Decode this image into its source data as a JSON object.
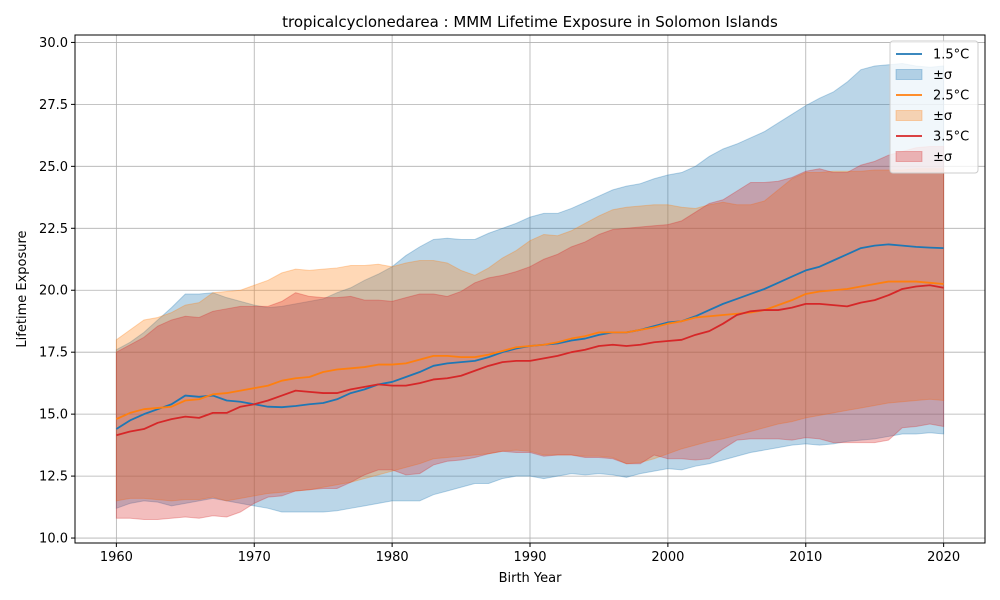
{
  "chart_data": {
    "type": "line",
    "title": "tropicalcyclonedarea : MMM Lifetime Exposure in Solomon Islands",
    "xlabel": "Birth Year",
    "ylabel": "Lifetime Exposure",
    "xlim": [
      1957,
      2023
    ],
    "ylim": [
      9.8,
      30.3
    ],
    "xticks": [
      1960,
      1970,
      1980,
      1990,
      2000,
      2010,
      2020
    ],
    "yticks": [
      10.0,
      12.5,
      15.0,
      17.5,
      20.0,
      22.5,
      25.0,
      27.5,
      30.0
    ],
    "ytick_labels": [
      "10.0",
      "12.5",
      "15.0",
      "17.5",
      "20.0",
      "22.5",
      "25.0",
      "27.5",
      "30.0"
    ],
    "grid": true,
    "legend_position": "upper right",
    "legend": [
      {
        "label": "1.5°C",
        "kind": "line",
        "color": "#1f77b4"
      },
      {
        "label": "±σ",
        "kind": "band",
        "color": "#1f77b4"
      },
      {
        "label": "2.5°C",
        "kind": "line",
        "color": "#ff7f0e"
      },
      {
        "label": "±σ",
        "kind": "band",
        "color": "#ff7f0e"
      },
      {
        "label": "3.5°C",
        "kind": "line",
        "color": "#d62728"
      },
      {
        "label": "±σ",
        "kind": "band",
        "color": "#d62728"
      }
    ],
    "x": [
      1960,
      1961,
      1962,
      1963,
      1964,
      1965,
      1966,
      1967,
      1968,
      1969,
      1970,
      1971,
      1972,
      1973,
      1974,
      1975,
      1976,
      1977,
      1978,
      1979,
      1980,
      1981,
      1982,
      1983,
      1984,
      1985,
      1986,
      1987,
      1988,
      1989,
      1990,
      1991,
      1992,
      1993,
      1994,
      1995,
      1996,
      1997,
      1998,
      1999,
      2000,
      2001,
      2002,
      2003,
      2004,
      2005,
      2006,
      2007,
      2008,
      2009,
      2010,
      2011,
      2012,
      2013,
      2014,
      2015,
      2016,
      2017,
      2018,
      2019,
      2020
    ],
    "series": [
      {
        "name": "1.5°C",
        "color": "#1f77b4",
        "mean": [
          14.4,
          14.75,
          15.0,
          15.2,
          15.4,
          15.75,
          15.7,
          15.75,
          15.55,
          15.5,
          15.4,
          15.3,
          15.28,
          15.33,
          15.4,
          15.45,
          15.6,
          15.85,
          16.0,
          16.2,
          16.3,
          16.5,
          16.7,
          16.95,
          17.05,
          17.1,
          17.15,
          17.3,
          17.5,
          17.65,
          17.75,
          17.8,
          17.85,
          17.97,
          18.05,
          18.2,
          18.3,
          18.3,
          18.4,
          18.55,
          18.7,
          18.75,
          18.95,
          19.2,
          19.45,
          19.65,
          19.85,
          20.05,
          20.3,
          20.55,
          20.8,
          20.95,
          21.2,
          21.45,
          21.7,
          21.8,
          21.85,
          21.8,
          21.75,
          21.72,
          21.7
        ],
        "lower": [
          11.2,
          11.4,
          11.5,
          11.45,
          11.3,
          11.4,
          11.5,
          11.6,
          11.5,
          11.4,
          11.3,
          11.2,
          11.05,
          11.05,
          11.05,
          11.05,
          11.1,
          11.2,
          11.3,
          11.4,
          11.5,
          11.5,
          11.5,
          11.75,
          11.9,
          12.05,
          12.2,
          12.2,
          12.4,
          12.5,
          12.5,
          12.4,
          12.5,
          12.6,
          12.55,
          12.6,
          12.55,
          12.45,
          12.6,
          12.7,
          12.8,
          12.75,
          12.9,
          13.0,
          13.15,
          13.3,
          13.45,
          13.55,
          13.65,
          13.75,
          13.8,
          13.75,
          13.8,
          13.9,
          13.95,
          14.0,
          14.1,
          14.2,
          14.2,
          14.25,
          14.2
        ],
        "upper": [
          17.6,
          17.9,
          18.3,
          18.8,
          19.3,
          19.85,
          19.85,
          19.9,
          19.7,
          19.55,
          19.4,
          19.3,
          19.35,
          19.45,
          19.55,
          19.65,
          19.9,
          20.1,
          20.4,
          20.65,
          20.95,
          21.4,
          21.75,
          22.05,
          22.1,
          22.05,
          22.05,
          22.3,
          22.5,
          22.7,
          22.95,
          23.1,
          23.1,
          23.3,
          23.55,
          23.8,
          24.05,
          24.2,
          24.3,
          24.5,
          24.65,
          24.75,
          25.0,
          25.4,
          25.7,
          25.9,
          26.15,
          26.4,
          26.75,
          27.1,
          27.45,
          27.75,
          28.0,
          28.4,
          28.9,
          29.05,
          29.1,
          29.15,
          29.05,
          29.0,
          29.05
        ]
      },
      {
        "name": "2.5°C",
        "color": "#ff7f0e",
        "mean": [
          14.8,
          15.05,
          15.2,
          15.25,
          15.3,
          15.55,
          15.6,
          15.8,
          15.85,
          15.95,
          16.05,
          16.15,
          16.35,
          16.45,
          16.5,
          16.7,
          16.8,
          16.85,
          16.9,
          17.0,
          17.0,
          17.05,
          17.2,
          17.35,
          17.35,
          17.3,
          17.3,
          17.4,
          17.55,
          17.7,
          17.75,
          17.8,
          17.9,
          18.05,
          18.15,
          18.3,
          18.3,
          18.3,
          18.4,
          18.5,
          18.65,
          18.75,
          18.9,
          18.95,
          19.0,
          19.05,
          19.1,
          19.2,
          19.4,
          19.6,
          19.85,
          19.95,
          20.0,
          20.05,
          20.15,
          20.25,
          20.35,
          20.35,
          20.35,
          20.3,
          20.25
        ],
        "lower": [
          11.5,
          11.6,
          11.6,
          11.55,
          11.5,
          11.55,
          11.55,
          11.65,
          11.5,
          11.6,
          11.7,
          11.8,
          11.85,
          11.9,
          11.95,
          12.05,
          12.15,
          12.25,
          12.4,
          12.55,
          12.7,
          12.85,
          13.0,
          13.2,
          13.25,
          13.3,
          13.35,
          13.4,
          13.5,
          13.55,
          13.5,
          13.35,
          13.35,
          13.35,
          13.3,
          13.3,
          13.25,
          13.0,
          13.05,
          13.2,
          13.4,
          13.6,
          13.75,
          13.9,
          14.0,
          14.15,
          14.3,
          14.45,
          14.6,
          14.7,
          14.85,
          14.95,
          15.05,
          15.15,
          15.25,
          15.35,
          15.45,
          15.5,
          15.55,
          15.6,
          15.55
        ],
        "upper": [
          18.0,
          18.4,
          18.8,
          18.9,
          19.1,
          19.4,
          19.5,
          19.9,
          19.95,
          20.0,
          20.2,
          20.4,
          20.7,
          20.85,
          20.8,
          20.85,
          20.9,
          21.0,
          21.0,
          21.05,
          20.95,
          21.1,
          21.2,
          21.2,
          21.1,
          20.8,
          20.6,
          20.9,
          21.3,
          21.6,
          22.0,
          22.25,
          22.2,
          22.4,
          22.7,
          23.0,
          23.25,
          23.35,
          23.4,
          23.45,
          23.45,
          23.35,
          23.3,
          23.45,
          23.55,
          23.45,
          23.45,
          23.6,
          24.05,
          24.5,
          24.75,
          24.75,
          24.8,
          24.8,
          24.8,
          24.85,
          24.85,
          24.85,
          24.9,
          24.9,
          24.9
        ]
      },
      {
        "name": "3.5°C",
        "color": "#d62728",
        "mean": [
          14.15,
          14.3,
          14.4,
          14.65,
          14.8,
          14.9,
          14.85,
          15.05,
          15.05,
          15.3,
          15.4,
          15.55,
          15.75,
          15.95,
          15.9,
          15.85,
          15.85,
          16.0,
          16.1,
          16.2,
          16.15,
          16.15,
          16.25,
          16.4,
          16.45,
          16.55,
          16.75,
          16.95,
          17.1,
          17.15,
          17.15,
          17.25,
          17.35,
          17.5,
          17.6,
          17.75,
          17.8,
          17.75,
          17.8,
          17.9,
          17.95,
          18.0,
          18.2,
          18.35,
          18.65,
          19.0,
          19.15,
          19.2,
          19.2,
          19.3,
          19.45,
          19.45,
          19.4,
          19.35,
          19.5,
          19.6,
          19.8,
          20.05,
          20.15,
          20.2,
          20.1
        ],
        "lower": [
          10.8,
          10.8,
          10.75,
          10.75,
          10.8,
          10.85,
          10.8,
          10.9,
          10.85,
          11.05,
          11.4,
          11.65,
          11.7,
          11.9,
          11.95,
          12.0,
          12.0,
          12.25,
          12.55,
          12.75,
          12.75,
          12.55,
          12.6,
          12.95,
          13.1,
          13.15,
          13.25,
          13.4,
          13.5,
          13.45,
          13.45,
          13.3,
          13.35,
          13.35,
          13.25,
          13.25,
          13.2,
          13.0,
          13.0,
          13.35,
          13.2,
          13.2,
          13.15,
          13.2,
          13.6,
          13.95,
          14.0,
          14.0,
          14.0,
          13.95,
          14.05,
          14.0,
          13.85,
          13.85,
          13.85,
          13.85,
          13.95,
          14.45,
          14.5,
          14.6,
          14.5
        ],
        "upper": [
          17.5,
          17.8,
          18.1,
          18.55,
          18.8,
          18.95,
          18.9,
          19.15,
          19.25,
          19.35,
          19.35,
          19.35,
          19.55,
          19.9,
          19.75,
          19.7,
          19.7,
          19.75,
          19.6,
          19.6,
          19.55,
          19.7,
          19.85,
          19.85,
          19.75,
          19.95,
          20.3,
          20.5,
          20.6,
          20.75,
          20.95,
          21.25,
          21.45,
          21.75,
          21.95,
          22.25,
          22.45,
          22.5,
          22.55,
          22.6,
          22.65,
          22.8,
          23.15,
          23.5,
          23.65,
          24.0,
          24.35,
          24.35,
          24.4,
          24.55,
          24.8,
          24.9,
          24.75,
          24.75,
          25.05,
          25.2,
          25.45,
          25.6,
          25.75,
          25.8,
          25.8
        ]
      }
    ]
  }
}
